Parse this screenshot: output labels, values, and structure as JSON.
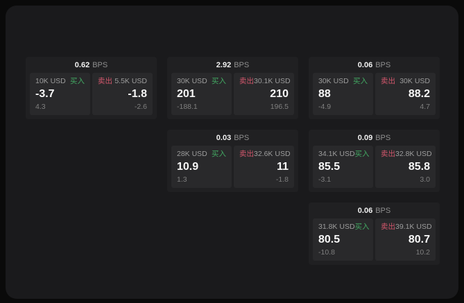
{
  "labels": {
    "bps_unit": "BPS",
    "buy": "买入",
    "sell": "卖出"
  },
  "colors": {
    "page_bg": "#0a0a0a",
    "window_bg": "#1a1a1c",
    "card_bg": "#202022",
    "panel_bg": "#29292b",
    "buy_green": "#42a862",
    "sell_red": "#d1566b",
    "label_gray": "#9c9c9c",
    "sub_gray": "#7f7f7f",
    "value_white": "#f7f7f7"
  },
  "cards": [
    {
      "bps": "0.62",
      "buy": {
        "amount": "10K USD",
        "value": "-3.7",
        "sub": "4.3"
      },
      "sell": {
        "amount": "5.5K USD",
        "value": "-1.8",
        "sub": "-2.6"
      }
    },
    {
      "bps": "2.92",
      "buy": {
        "amount": "30K USD",
        "value": "201",
        "sub": "-188.1"
      },
      "sell": {
        "amount": "30.1K USD",
        "value": "210",
        "sub": "196.5"
      }
    },
    {
      "bps": "0.06",
      "buy": {
        "amount": "30K USD",
        "value": "88",
        "sub": "-4.9"
      },
      "sell": {
        "amount": "30K USD",
        "value": "88.2",
        "sub": "4.7"
      }
    },
    {
      "bps": "0.03",
      "buy": {
        "amount": "28K USD",
        "value": "10.9",
        "sub": "1.3"
      },
      "sell": {
        "amount": "32.6K USD",
        "value": "11",
        "sub": "-1.8"
      }
    },
    {
      "bps": "0.09",
      "buy": {
        "amount": "34.1K USD",
        "value": "85.5",
        "sub": "-3.1"
      },
      "sell": {
        "amount": "32.8K USD",
        "value": "85.8",
        "sub": "3.0"
      }
    },
    {
      "bps": "0.06",
      "buy": {
        "amount": "31.8K USD",
        "value": "80.5",
        "sub": "-10.8"
      },
      "sell": {
        "amount": "39.1K USD",
        "value": "80.7",
        "sub": "10.2"
      }
    }
  ]
}
